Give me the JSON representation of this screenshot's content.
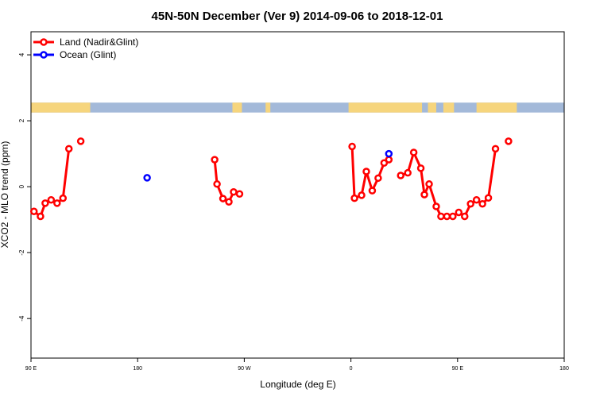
{
  "chart_data": {
    "type": "line",
    "title": "45N-50N December (Ver 9)   2014-09-06 to 2018-12-01",
    "xlabel": "Longitude (deg E)",
    "ylabel": "XCO2 - MLO trend (ppm)",
    "xlim": [
      90,
      540
    ],
    "ylim": [
      -5.2,
      4.7
    ],
    "x_tick_values": [
      90,
      180,
      270,
      360,
      450,
      540
    ],
    "x_tick_labels": [
      "90 E",
      "180",
      "90 W",
      "0",
      "90 E",
      "180"
    ],
    "y_tick_values": [
      -4,
      -2,
      0,
      2,
      4
    ],
    "y_tick_labels": [
      "-4",
      "-2",
      "0",
      "2",
      "4"
    ],
    "legend_position": "top-left",
    "map_strip": {
      "y_range": [
        2.25,
        2.55
      ],
      "ocean_color": "#a3b9d9",
      "land_color": "#f6d57d"
    },
    "series": [
      {
        "name": "Land (Nadir&Glint)",
        "color": "#ff0000",
        "segments": [
          [
            [
              92.5,
              -0.75
            ],
            [
              98,
              -0.9
            ],
            [
              102,
              -0.5
            ],
            [
              107,
              -0.4
            ],
            [
              112,
              -0.5
            ],
            [
              117,
              -0.35
            ],
            [
              122,
              1.15
            ]
          ],
          [
            [
              132,
              1.38
            ]
          ],
          [
            [
              245,
              0.82
            ],
            [
              247,
              0.08
            ],
            [
              252,
              -0.36
            ],
            [
              257,
              -0.46
            ],
            [
              261,
              -0.16
            ],
            [
              266,
              -0.22
            ]
          ],
          [
            [
              361,
              1.22
            ],
            [
              363,
              -0.35
            ],
            [
              369,
              -0.26
            ],
            [
              373,
              0.46
            ],
            [
              378,
              -0.12
            ],
            [
              383,
              0.26
            ],
            [
              388,
              0.72
            ],
            [
              392,
              0.82
            ]
          ],
          [
            [
              402,
              0.34
            ],
            [
              408,
              0.42
            ],
            [
              413,
              1.04
            ],
            [
              419,
              0.56
            ],
            [
              422,
              -0.24
            ],
            [
              426,
              0.08
            ],
            [
              432,
              -0.6
            ],
            [
              436,
              -0.9
            ],
            [
              441,
              -0.9
            ],
            [
              446,
              -0.9
            ],
            [
              451,
              -0.78
            ],
            [
              456,
              -0.9
            ],
            [
              461,
              -0.52
            ],
            [
              466,
              -0.4
            ],
            [
              471,
              -0.52
            ],
            [
              476,
              -0.34
            ],
            [
              482,
              1.15
            ]
          ],
          [
            [
              493,
              1.38
            ]
          ]
        ]
      },
      {
        "name": "Ocean (Glint)",
        "color": "#0000ff",
        "segments": [
          [
            [
              188,
              0.27
            ]
          ],
          [
            [
              392,
              1.0
            ]
          ]
        ]
      }
    ]
  }
}
